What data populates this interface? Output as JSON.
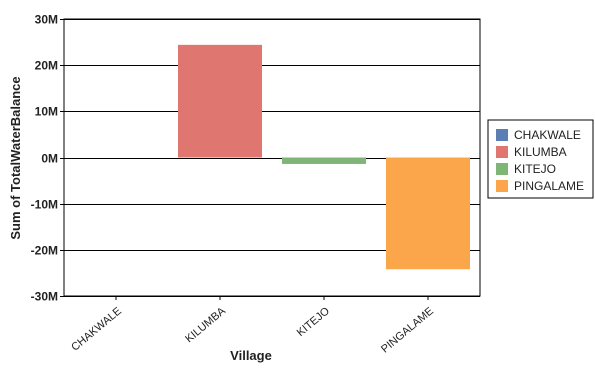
{
  "chart_data": {
    "type": "bar",
    "categories": [
      "CHAKWALE",
      "KILUMBA",
      "KITEJO",
      "PINGALAME"
    ],
    "values": [
      0,
      24400000,
      -1400000,
      -24200000
    ],
    "colors": [
      "#5b7fb3",
      "#df7670",
      "#7fb677",
      "#fba64a"
    ],
    "xlabel": "Village",
    "ylabel": "Sum of TotalWaterBalance",
    "ylim": [
      -30000000,
      30000000
    ],
    "yticks": [
      {
        "value": 30000000,
        "label": "30M"
      },
      {
        "value": 20000000,
        "label": "20M"
      },
      {
        "value": 10000000,
        "label": "10M"
      },
      {
        "value": 0,
        "label": "0M"
      },
      {
        "value": -10000000,
        "label": "-10M"
      },
      {
        "value": -20000000,
        "label": "-20M"
      },
      {
        "value": -30000000,
        "label": "-30M"
      }
    ],
    "grid": true,
    "legend": {
      "placement": "right",
      "entries": [
        "CHAKWALE",
        "KILUMBA",
        "KITEJO",
        "PINGALAME"
      ]
    }
  }
}
